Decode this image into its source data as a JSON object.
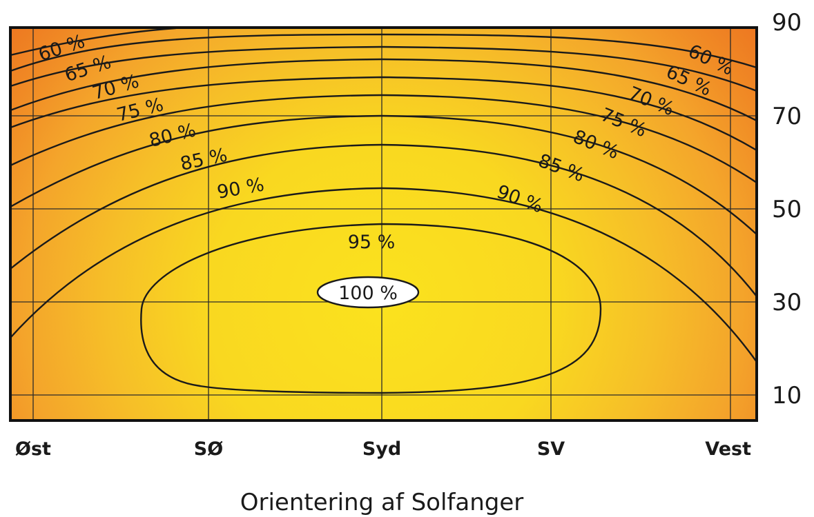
{
  "chart_data": {
    "type": "contour",
    "xlabel": "Orientering af Solfanger",
    "ylabel": "",
    "x_ticks": [
      "Øst",
      "SØ",
      "Syd",
      "SV",
      "Vest"
    ],
    "y_ticks": [
      90,
      70,
      50,
      30,
      10
    ],
    "y_axis_side": "right",
    "ylim": [
      5,
      88
    ],
    "grid": true,
    "contour_levels": [
      {
        "label": "60 %",
        "value": 60
      },
      {
        "label": "65 %",
        "value": 65
      },
      {
        "label": "70 %",
        "value": 70
      },
      {
        "label": "75 %",
        "value": 75
      },
      {
        "label": "80 %",
        "value": 80
      },
      {
        "label": "85 %",
        "value": 85
      },
      {
        "label": "90 %",
        "value": 90
      },
      {
        "label": "95 %",
        "value": 95
      },
      {
        "label": "100 %",
        "value": 100
      }
    ],
    "optimum": {
      "orientation": "Syd",
      "tilt": 32,
      "label": "100 %"
    },
    "colors": {
      "low": "#ef7d22",
      "mid": "#f5b82a",
      "high": "#fbe21e",
      "line": "#1a1a1a"
    }
  }
}
